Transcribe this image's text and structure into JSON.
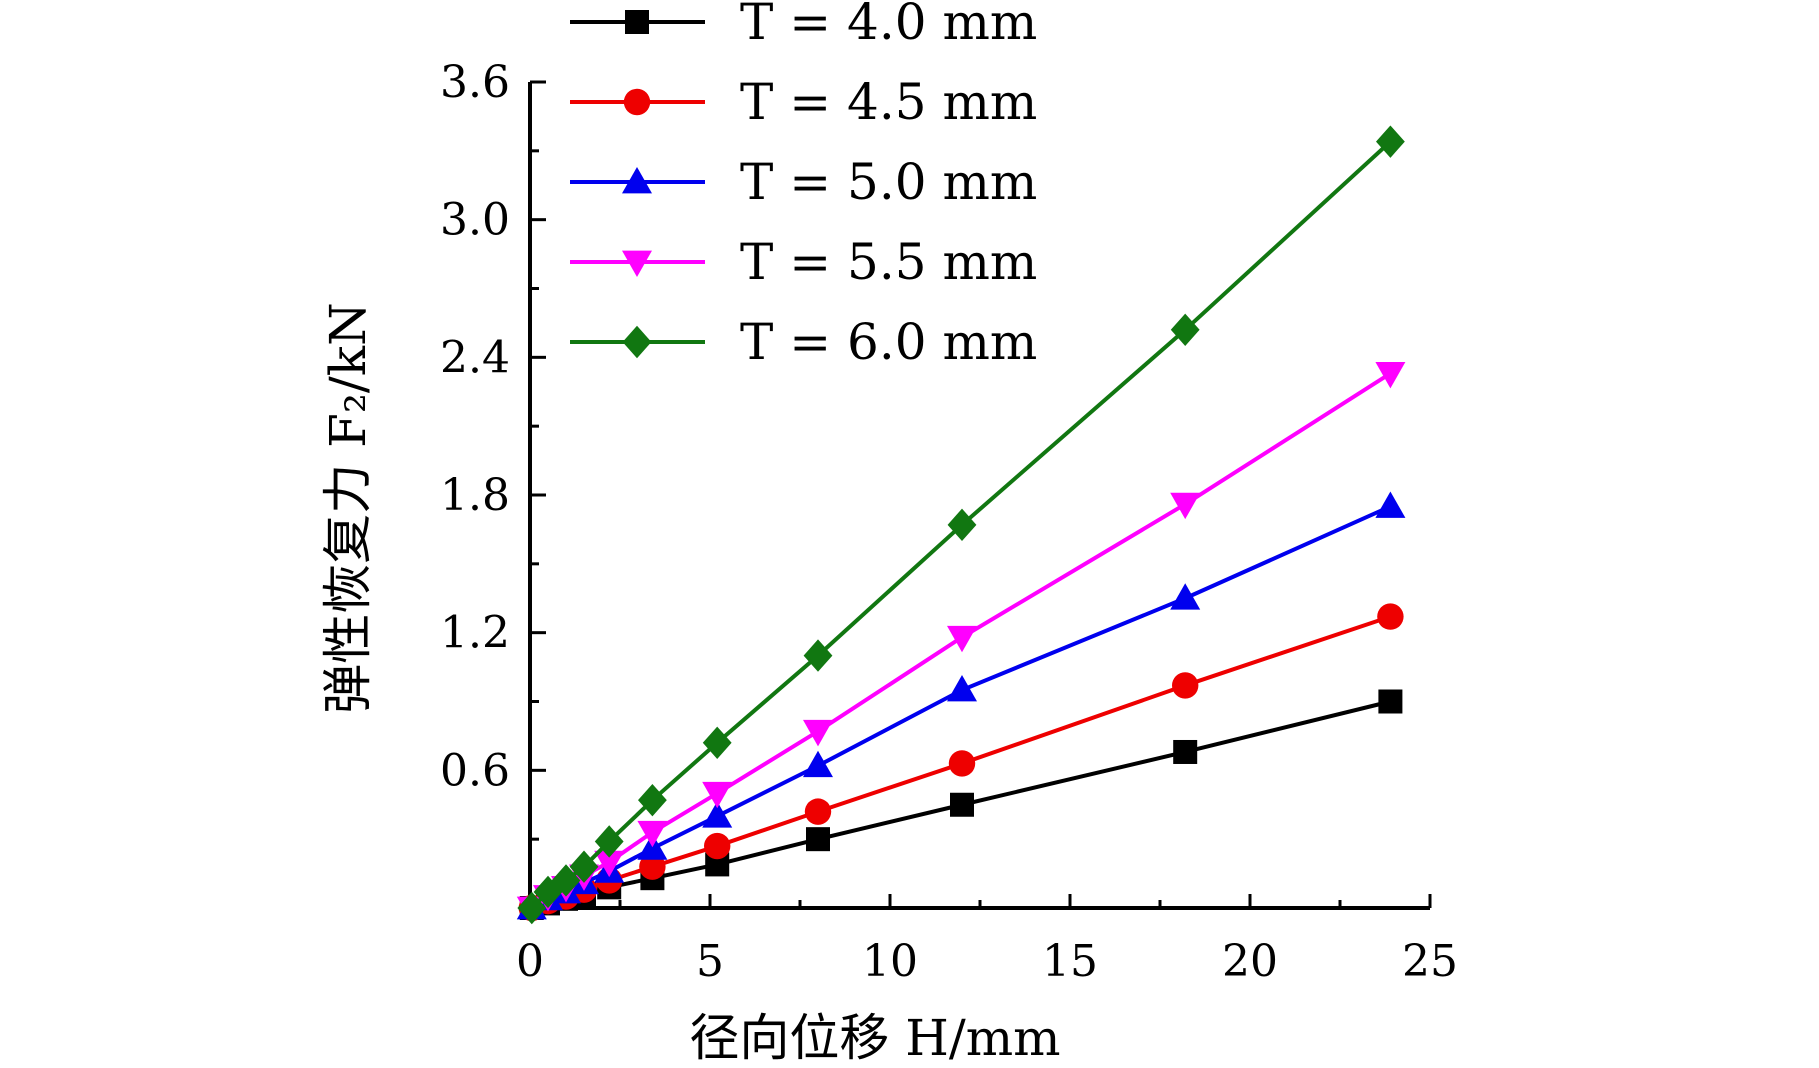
{
  "chart_data": {
    "type": "line",
    "xlabel": "径向位移 H/mm",
    "ylabel": "弹性恢复力 F₂/kN",
    "xlim": [
      0,
      25
    ],
    "ylim": [
      0,
      3.6
    ],
    "x_ticks": [
      "0",
      "5",
      "10",
      "15",
      "20",
      "25"
    ],
    "y_ticks": [
      "0.6",
      "1.2",
      "1.8",
      "2.4",
      "3.0",
      "3.6"
    ],
    "grid": false,
    "legend_position": "top-left",
    "x": [
      0.05,
      0.5,
      1.0,
      1.5,
      2.2,
      3.4,
      5.2,
      8.0,
      12.0,
      18.2,
      23.9
    ],
    "series": [
      {
        "name": "T = 4.0 mm",
        "color": "#000000",
        "marker": "square",
        "values": [
          0.0,
          0.02,
          0.04,
          0.06,
          0.09,
          0.13,
          0.19,
          0.3,
          0.45,
          0.68,
          0.9
        ]
      },
      {
        "name": "T = 4.5 mm",
        "color": "#ee0000",
        "marker": "circle",
        "values": [
          0.0,
          0.03,
          0.05,
          0.08,
          0.12,
          0.18,
          0.27,
          0.42,
          0.63,
          0.97,
          1.27
        ]
      },
      {
        "name": "T = 5.0 mm",
        "color": "#0000ee",
        "marker": "triangle-up",
        "values": [
          0.0,
          0.04,
          0.07,
          0.11,
          0.16,
          0.26,
          0.4,
          0.62,
          0.95,
          1.35,
          1.75
        ]
      },
      {
        "name": "T = 5.5 mm",
        "color": "#ff00ff",
        "marker": "triangle-down",
        "values": [
          0.0,
          0.05,
          0.09,
          0.14,
          0.2,
          0.33,
          0.5,
          0.77,
          1.18,
          1.76,
          2.33
        ]
      },
      {
        "name": "T = 6.0 mm",
        "color": "#117711",
        "marker": "diamond",
        "values": [
          0.0,
          0.07,
          0.12,
          0.18,
          0.29,
          0.47,
          0.72,
          1.1,
          1.67,
          2.52,
          3.34
        ]
      }
    ]
  }
}
